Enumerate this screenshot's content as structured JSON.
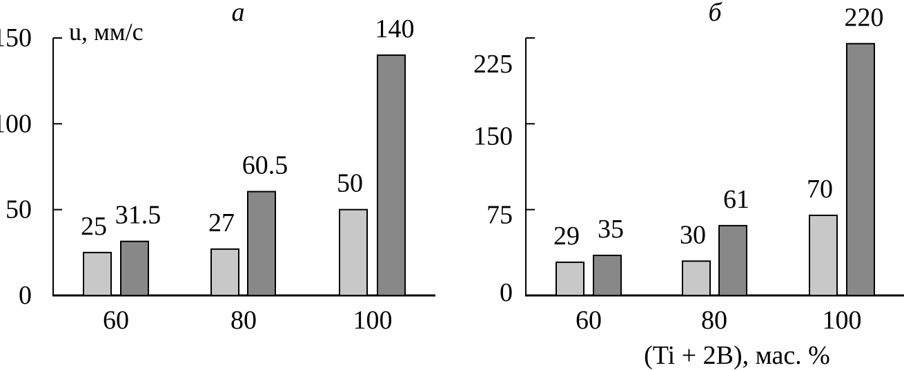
{
  "chart_data": [
    {
      "type": "bar",
      "panel_label": "а",
      "ylabel": "u, мм/с",
      "xlabel": "",
      "categories": [
        "60",
        "80",
        "100"
      ],
      "ylim": [
        0,
        150
      ],
      "yticks": [
        "0",
        "50",
        "100",
        "150"
      ],
      "grid": false,
      "series": [
        {
          "values": [
            25,
            27,
            50
          ],
          "labels": [
            "25",
            "27",
            "50"
          ],
          "color": "#c8c8c8"
        },
        {
          "values": [
            31.5,
            60.5,
            140
          ],
          "labels": [
            "31.5",
            "60.5",
            "140"
          ],
          "color": "#888888"
        }
      ]
    },
    {
      "type": "bar",
      "panel_label": "б",
      "ylabel": "",
      "xlabel": "(Ti + 2B), мас. %",
      "categories": [
        "60",
        "80",
        "100"
      ],
      "ylim": [
        0,
        225
      ],
      "yticks": [
        "0",
        "75",
        "150",
        "225"
      ],
      "grid": false,
      "series": [
        {
          "values": [
            29,
            30,
            70
          ],
          "labels": [
            "29",
            "30",
            "70"
          ],
          "color": "#c8c8c8"
        },
        {
          "values": [
            35,
            61,
            220
          ],
          "labels": [
            "35",
            "61",
            "220"
          ],
          "color": "#888888"
        }
      ]
    }
  ]
}
